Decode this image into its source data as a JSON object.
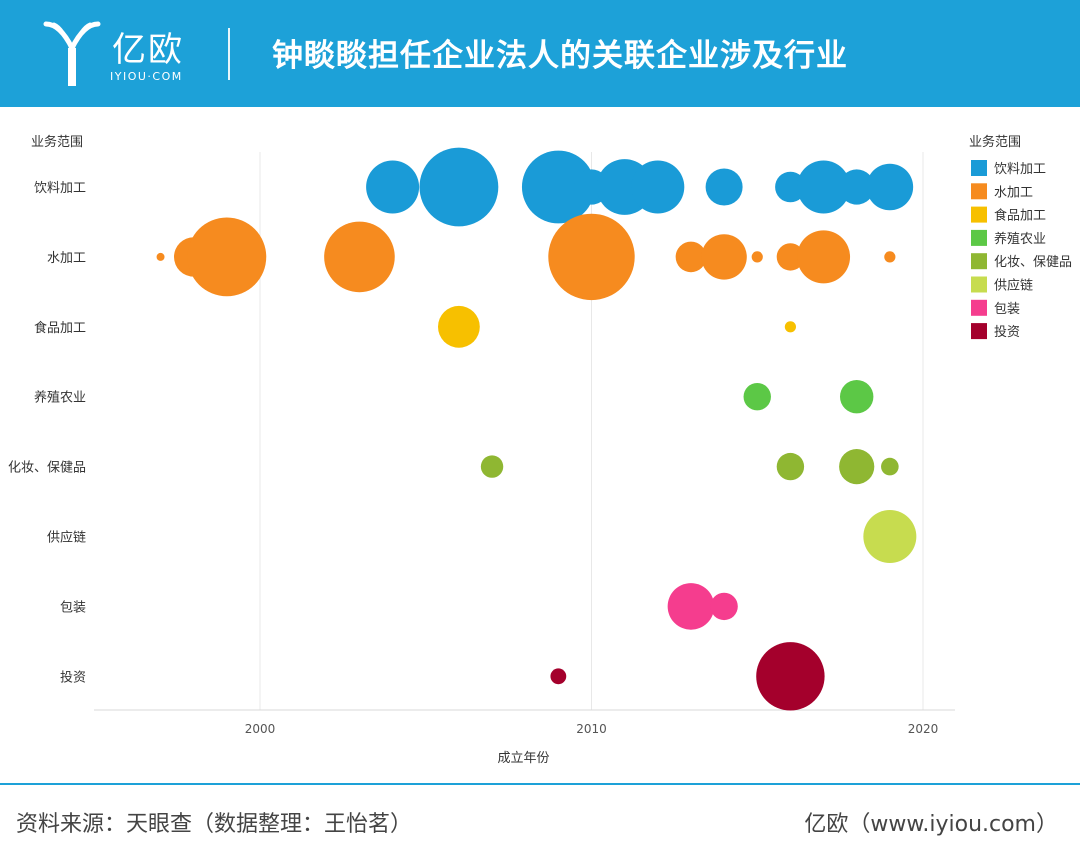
{
  "header": {
    "brand": "亿欧",
    "brand_sub": "IYIOU·COM",
    "title": "钟睒睒担任企业法人的关联企业涉及行业"
  },
  "footer": {
    "source": "资料来源：天眼查（数据整理：王怡茗）",
    "credit": "亿欧（www.iyiou.com）"
  },
  "colors": {
    "header_bg": "#1da1d8",
    "饮料加工": "#1a9bd7",
    "水加工": "#f68b1f",
    "食品加工": "#f7c000",
    "养殖农业": "#5cc846",
    "化妆、保健品": "#8fb732",
    "供应链": "#c7dc4f",
    "包装": "#f53d8e",
    "投资": "#a4002c"
  },
  "chart_data": {
    "type": "scatter",
    "subtype": "bubble",
    "title": "钟睒睒担任企业法人的关联企业涉及行业",
    "xlabel": "成立年份",
    "ylabel": "业务范围",
    "xlim": [
      1995,
      2021
    ],
    "xticks": [
      2000,
      2010,
      2020
    ],
    "categories": [
      "饮料加工",
      "水加工",
      "食品加工",
      "养殖农业",
      "化妆、保健品",
      "供应链",
      "包装",
      "投资"
    ],
    "legend": {
      "title": "业务范围",
      "position": "right"
    },
    "grid": "vertical",
    "size_unit": "relative bubble size (no scale shown)",
    "series": [
      {
        "name": "饮料加工",
        "points": [
          [
            2004,
            0.45
          ],
          [
            2006,
            1.0
          ],
          [
            2009,
            0.85
          ],
          [
            2010,
            0.2
          ],
          [
            2011,
            0.5
          ],
          [
            2012,
            0.45
          ],
          [
            2014,
            0.22
          ],
          [
            2016,
            0.15
          ],
          [
            2017,
            0.45
          ],
          [
            2018,
            0.2
          ],
          [
            2019,
            0.35
          ]
        ]
      },
      {
        "name": "水加工",
        "points": [
          [
            1997,
            0.01
          ],
          [
            1998,
            0.25
          ],
          [
            1999,
            1.0
          ],
          [
            2003,
            0.8
          ],
          [
            2010,
            1.2
          ],
          [
            2013,
            0.15
          ],
          [
            2014,
            0.33
          ],
          [
            2015,
            0.02
          ],
          [
            2016,
            0.12
          ],
          [
            2017,
            0.45
          ],
          [
            2019,
            0.02
          ]
        ]
      },
      {
        "name": "食品加工",
        "points": [
          [
            2006,
            0.28
          ],
          [
            2016,
            0.02
          ]
        ]
      },
      {
        "name": "养殖农业",
        "points": [
          [
            2015,
            0.12
          ],
          [
            2018,
            0.18
          ]
        ]
      },
      {
        "name": "化妆、保健品",
        "points": [
          [
            2007,
            0.08
          ],
          [
            2016,
            0.12
          ],
          [
            2018,
            0.2
          ],
          [
            2019,
            0.05
          ]
        ]
      },
      {
        "name": "供应链",
        "points": [
          [
            2019,
            0.45
          ]
        ]
      },
      {
        "name": "包装",
        "points": [
          [
            2013,
            0.35
          ],
          [
            2014,
            0.12
          ]
        ]
      },
      {
        "name": "投资",
        "points": [
          [
            2009,
            0.04
          ],
          [
            2016,
            0.75
          ]
        ]
      }
    ]
  }
}
